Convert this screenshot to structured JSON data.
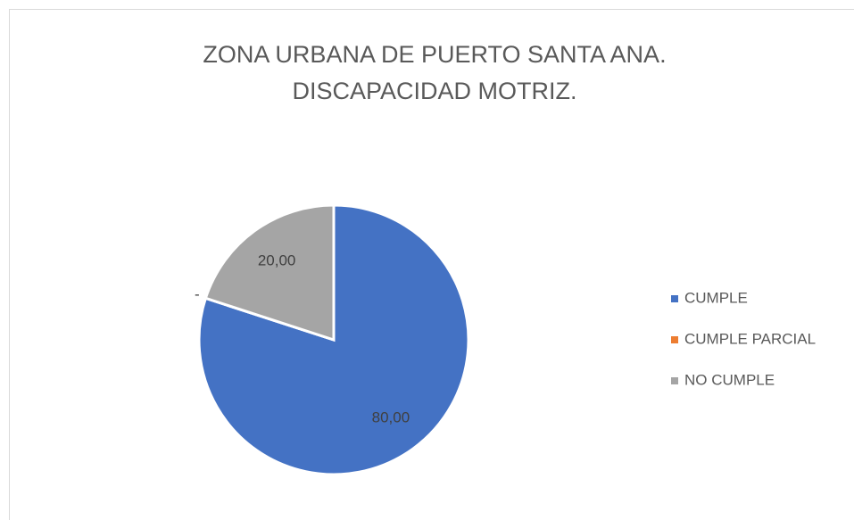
{
  "chart_data": {
    "type": "pie",
    "title": [
      "ZONA URBANA DE PUERTO SANTA ANA.",
      "DISCAPACIDAD MOTRIZ."
    ],
    "categories": [
      "CUMPLE",
      "CUMPLE PARCIAL",
      "NO CUMPLE"
    ],
    "values": [
      80,
      0,
      20
    ],
    "value_labels": [
      "80,00",
      "-",
      "20,00"
    ],
    "colors": [
      "#4472c4",
      "#ed7d31",
      "#a5a5a5"
    ],
    "legend": "right"
  }
}
